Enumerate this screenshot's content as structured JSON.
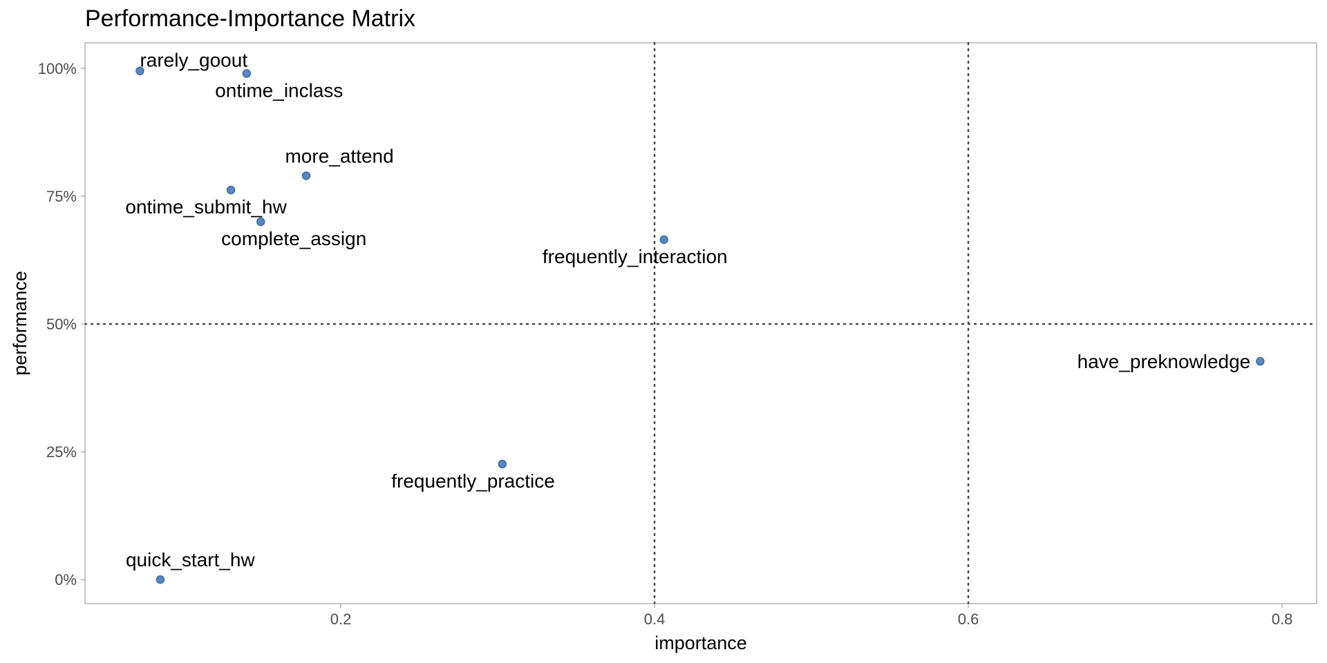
{
  "chart_data": {
    "type": "scatter",
    "title": "Performance-Importance Matrix",
    "xlabel": "importance",
    "ylabel": "performance",
    "xlim": [
      0.037,
      0.822
    ],
    "ylim": [
      -0.047,
      1.05
    ],
    "x_ticks": [
      {
        "value": 0.2,
        "label": "0.2"
      },
      {
        "value": 0.4,
        "label": "0.4"
      },
      {
        "value": 0.6,
        "label": "0.6"
      },
      {
        "value": 0.8,
        "label": "0.8"
      }
    ],
    "y_ticks": [
      {
        "value": 0.0,
        "label": "0%"
      },
      {
        "value": 0.25,
        "label": "25%"
      },
      {
        "value": 0.5,
        "label": "50%"
      },
      {
        "value": 0.75,
        "label": "75%"
      },
      {
        "value": 1.0,
        "label": "100%"
      }
    ],
    "vlines": [
      0.4,
      0.6
    ],
    "hlines": [
      0.5
    ],
    "grid": false,
    "point_color": "#5b86bb",
    "points": [
      {
        "label": "rarely_goout",
        "x": 0.072,
        "y": 0.995,
        "anchor": "start",
        "pos": "above-right"
      },
      {
        "label": "ontime_inclass",
        "x": 0.14,
        "y": 0.99,
        "anchor": "middle",
        "pos": "below"
      },
      {
        "label": "more_attend",
        "x": 0.178,
        "y": 0.79,
        "anchor": "middle",
        "pos": "above"
      },
      {
        "label": "ontime_submit_hw",
        "x": 0.13,
        "y": 0.762,
        "anchor": "middle",
        "pos": "below"
      },
      {
        "label": "complete_assign",
        "x": 0.149,
        "y": 0.7,
        "anchor": "middle",
        "pos": "below-right"
      },
      {
        "label": "frequently_interaction",
        "x": 0.406,
        "y": 0.665,
        "anchor": "end",
        "pos": "below-left"
      },
      {
        "label": "have_preknowledge",
        "x": 0.786,
        "y": 0.427,
        "anchor": "end",
        "pos": "left"
      },
      {
        "label": "frequently_practice",
        "x": 0.303,
        "y": 0.226,
        "anchor": "end",
        "pos": "below-left"
      },
      {
        "label": "quick_start_hw",
        "x": 0.085,
        "y": 0.0,
        "anchor": "start",
        "pos": "above"
      }
    ]
  }
}
